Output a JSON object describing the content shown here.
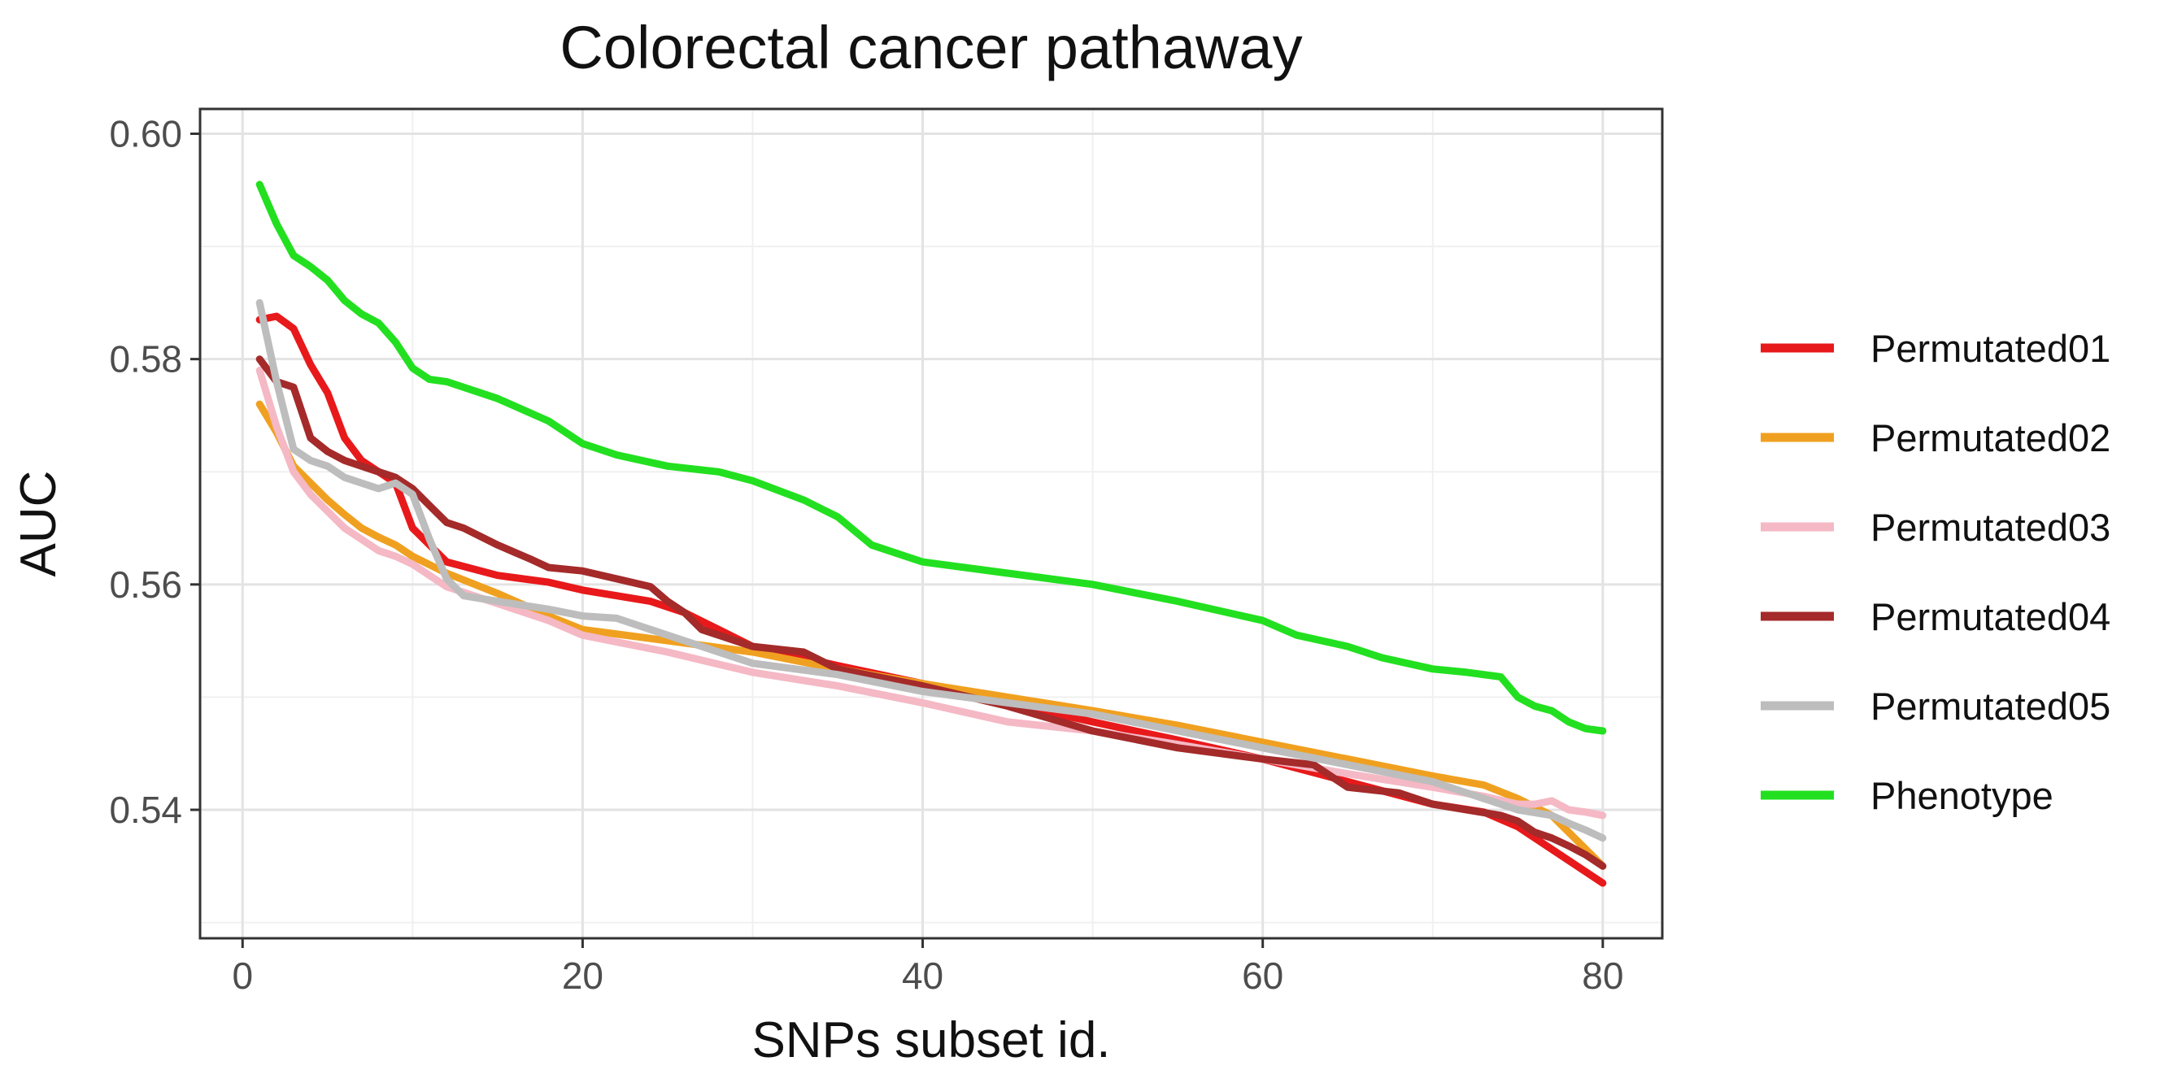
{
  "chart_data": {
    "type": "line",
    "title": "Colorectal cancer pathaway",
    "xlabel": "SNPs subset id.",
    "ylabel": "AUC",
    "xlim": [
      -2.5,
      83.5
    ],
    "ylim": [
      0.5286,
      0.6022
    ],
    "x_ticks": [
      0,
      20,
      40,
      60,
      80
    ],
    "x_tick_labels": [
      "0",
      "20",
      "40",
      "60",
      "80"
    ],
    "y_ticks": [
      0.54,
      0.56,
      0.58,
      0.6
    ],
    "y_tick_labels": [
      "0.54",
      "0.56",
      "0.58",
      "0.60"
    ],
    "grid": true,
    "legend_position": "right",
    "series": [
      {
        "name": "Permutated01",
        "color": "#e8191b",
        "x": [
          1,
          2,
          3,
          4,
          5,
          6,
          7,
          8,
          9,
          10,
          12,
          15,
          18,
          20,
          22,
          24,
          26,
          28,
          30,
          35,
          40,
          45,
          50,
          55,
          60,
          65,
          70,
          73,
          75,
          77,
          78,
          79,
          80
        ],
        "y": [
          0.5835,
          0.5838,
          0.5827,
          0.5795,
          0.577,
          0.573,
          0.571,
          0.57,
          0.569,
          0.565,
          0.562,
          0.5608,
          0.5602,
          0.5595,
          0.559,
          0.5585,
          0.5575,
          0.556,
          0.5545,
          0.5528,
          0.5512,
          0.5495,
          0.5478,
          0.5462,
          0.5445,
          0.5425,
          0.5405,
          0.5398,
          0.5385,
          0.5365,
          0.5355,
          0.5345,
          0.5335
        ]
      },
      {
        "name": "Permutated02",
        "color": "#f0a020",
        "x": [
          1,
          2,
          3,
          4,
          5,
          6,
          7,
          8,
          9,
          10,
          12,
          15,
          18,
          20,
          25,
          30,
          35,
          40,
          45,
          50,
          55,
          60,
          65,
          70,
          73,
          75,
          77,
          78,
          79,
          80
        ],
        "y": [
          0.576,
          0.5735,
          0.5705,
          0.569,
          0.5675,
          0.5662,
          0.565,
          0.5642,
          0.5635,
          0.5625,
          0.561,
          0.5592,
          0.5572,
          0.556,
          0.555,
          0.554,
          0.5525,
          0.5512,
          0.55,
          0.5488,
          0.5475,
          0.546,
          0.5445,
          0.543,
          0.5422,
          0.541,
          0.5395,
          0.538,
          0.5365,
          0.535
        ]
      },
      {
        "name": "Permutated03",
        "color": "#f5b8c5",
        "x": [
          1,
          2,
          3,
          4,
          5,
          6,
          7,
          8,
          9,
          10,
          12,
          15,
          18,
          20,
          25,
          30,
          35,
          40,
          45,
          50,
          55,
          60,
          65,
          70,
          73,
          75,
          76,
          77,
          78,
          79,
          80
        ],
        "y": [
          0.579,
          0.574,
          0.57,
          0.568,
          0.5665,
          0.565,
          0.564,
          0.563,
          0.5625,
          0.5618,
          0.5598,
          0.5583,
          0.5568,
          0.5555,
          0.554,
          0.5522,
          0.551,
          0.5495,
          0.5478,
          0.547,
          0.5458,
          0.5445,
          0.5432,
          0.542,
          0.5412,
          0.5405,
          0.5405,
          0.5408,
          0.54,
          0.5398,
          0.5395
        ]
      },
      {
        "name": "Permutated04",
        "color": "#a52a2a",
        "x": [
          1,
          2,
          3,
          4,
          5,
          6,
          7,
          8,
          9,
          10,
          11,
          12,
          13,
          15,
          17,
          18,
          20,
          22,
          24,
          25,
          26,
          27,
          28,
          30,
          33,
          35,
          40,
          45,
          50,
          55,
          60,
          63,
          65,
          68,
          70,
          72,
          74,
          75,
          76,
          77,
          78,
          79,
          80
        ],
        "y": [
          0.58,
          0.578,
          0.5775,
          0.573,
          0.5718,
          0.571,
          0.5705,
          0.57,
          0.5695,
          0.5685,
          0.567,
          0.5655,
          0.565,
          0.5635,
          0.5622,
          0.5615,
          0.5612,
          0.5605,
          0.5598,
          0.5585,
          0.5575,
          0.556,
          0.5555,
          0.5545,
          0.554,
          0.5525,
          0.551,
          0.5492,
          0.547,
          0.5455,
          0.5445,
          0.544,
          0.542,
          0.5415,
          0.5405,
          0.54,
          0.5395,
          0.539,
          0.538,
          0.5375,
          0.5368,
          0.536,
          0.535
        ]
      },
      {
        "name": "Permutated05",
        "color": "#bdbdbd",
        "x": [
          1,
          2,
          3,
          4,
          5,
          6,
          7,
          8,
          9,
          10,
          11,
          12,
          13,
          15,
          18,
          20,
          22,
          24,
          26,
          28,
          30,
          35,
          40,
          45,
          50,
          55,
          60,
          65,
          70,
          75,
          77,
          78,
          79,
          80
        ],
        "y": [
          0.585,
          0.578,
          0.572,
          0.571,
          0.5705,
          0.5695,
          0.569,
          0.5685,
          0.569,
          0.568,
          0.564,
          0.5605,
          0.559,
          0.5585,
          0.5578,
          0.5572,
          0.557,
          0.556,
          0.555,
          0.554,
          0.553,
          0.552,
          0.5505,
          0.5495,
          0.5485,
          0.547,
          0.5455,
          0.544,
          0.5425,
          0.54,
          0.5395,
          0.5388,
          0.5382,
          0.5375
        ]
      },
      {
        "name": "Phenotype",
        "color": "#22e020",
        "x": [
          1,
          2,
          3,
          4,
          5,
          6,
          7,
          8,
          9,
          10,
          11,
          12,
          15,
          18,
          20,
          22,
          25,
          28,
          30,
          33,
          35,
          37,
          40,
          45,
          50,
          55,
          60,
          62,
          65,
          67,
          70,
          72,
          74,
          75,
          76,
          77,
          78,
          79,
          80
        ],
        "y": [
          0.5955,
          0.592,
          0.5892,
          0.5882,
          0.587,
          0.5852,
          0.584,
          0.5832,
          0.5815,
          0.5792,
          0.5782,
          0.578,
          0.5765,
          0.5745,
          0.5725,
          0.5715,
          0.5705,
          0.57,
          0.5692,
          0.5675,
          0.566,
          0.5635,
          0.562,
          0.561,
          0.56,
          0.5585,
          0.5568,
          0.5555,
          0.5545,
          0.5535,
          0.5525,
          0.5522,
          0.5518,
          0.55,
          0.5492,
          0.5488,
          0.5478,
          0.5472,
          0.547
        ]
      }
    ]
  }
}
